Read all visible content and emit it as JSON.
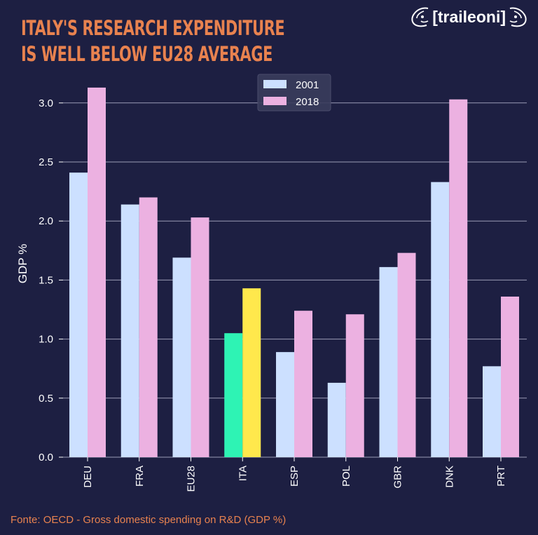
{
  "header": {
    "title_line1": "ITALY'S RESEARCH EXPENDITURE",
    "title_line2": "IS WELL BELOW EU28 AVERAGE",
    "logo_text": "[traileoni]"
  },
  "footer": {
    "source": "Fonte: OECD - Gross domestic spending on R&D (GDP %)"
  },
  "colors": {
    "background": "#1d1f42",
    "series_2001": "#cce0ff",
    "series_2018": "#ecb1e1",
    "highlight_2001": "#2ef3b4",
    "highlight_2018": "#ffe84c",
    "title": "#e8824f",
    "grid": "#9b9cb6"
  },
  "chart_data": {
    "type": "bar",
    "categories": [
      "DEU",
      "FRA",
      "EU28",
      "ITA",
      "ESP",
      "POL",
      "GBR",
      "DNK",
      "PRT"
    ],
    "highlight_category": "ITA",
    "series": [
      {
        "name": "2001",
        "values": [
          2.41,
          2.14,
          1.69,
          1.05,
          0.89,
          0.63,
          1.61,
          2.33,
          0.77
        ]
      },
      {
        "name": "2018",
        "values": [
          3.13,
          2.2,
          2.03,
          1.43,
          1.24,
          1.21,
          1.73,
          3.03,
          1.36
        ]
      }
    ],
    "ylabel": "GDP %",
    "ylim": [
      0,
      3.2
    ],
    "yticks": [
      "0.0",
      "0.5",
      "1.0",
      "1.5",
      "2.0",
      "2.5",
      "3.0"
    ],
    "grid": "horizontal",
    "legend_position": "top-center"
  }
}
